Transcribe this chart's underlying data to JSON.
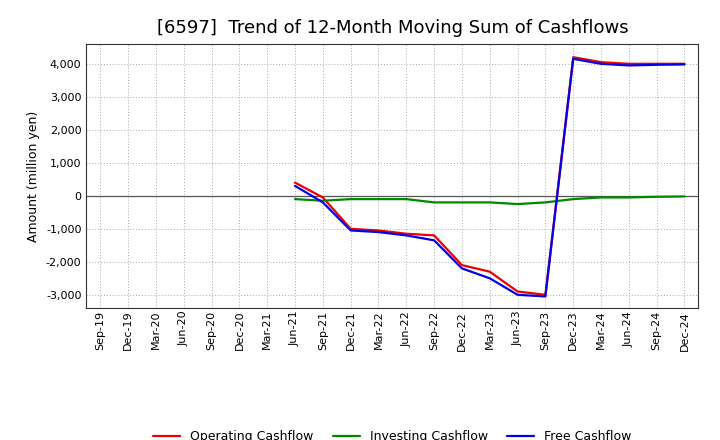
{
  "title": "[6597]  Trend of 12-Month Moving Sum of Cashflows",
  "ylabel": "Amount (million yen)",
  "title_fontsize": 13,
  "label_fontsize": 9,
  "tick_fontsize": 8,
  "legend_fontsize": 9,
  "background_color": "#ffffff",
  "grid_color": "#aaaaaa",
  "x_labels": [
    "Sep-19",
    "Dec-19",
    "Mar-20",
    "Jun-20",
    "Sep-20",
    "Dec-20",
    "Mar-21",
    "Jun-21",
    "Sep-21",
    "Dec-21",
    "Mar-22",
    "Jun-22",
    "Sep-22",
    "Dec-22",
    "Mar-23",
    "Jun-23",
    "Sep-23",
    "Dec-23",
    "Mar-24",
    "Jun-24",
    "Sep-24",
    "Dec-24"
  ],
  "operating": [
    null,
    null,
    null,
    null,
    null,
    null,
    null,
    400,
    -50,
    -1000,
    -1050,
    -1150,
    -1200,
    -2100,
    -2300,
    -2900,
    -3000,
    4200,
    4050,
    4000,
    4000,
    4000
  ],
  "investing": [
    null,
    null,
    null,
    null,
    null,
    null,
    null,
    -100,
    -150,
    -100,
    -100,
    -100,
    -200,
    -200,
    -200,
    -250,
    -200,
    -100,
    -50,
    -50,
    -30,
    -20
  ],
  "free": [
    null,
    null,
    null,
    null,
    null,
    null,
    null,
    300,
    -200,
    -1050,
    -1100,
    -1200,
    -1350,
    -2200,
    -2500,
    -3000,
    -3050,
    4150,
    4000,
    3950,
    3970,
    3980
  ],
  "ylim": [
    -3400,
    4600
  ],
  "yticks": [
    -3000,
    -2000,
    -1000,
    0,
    1000,
    2000,
    3000,
    4000
  ],
  "line_colors": {
    "operating": "#ee0000",
    "investing": "#008800",
    "free": "#0000ee"
  },
  "line_widths": {
    "operating": 1.6,
    "investing": 1.6,
    "free": 1.6
  },
  "legend_labels": [
    "Operating Cashflow",
    "Investing Cashflow",
    "Free Cashflow"
  ]
}
